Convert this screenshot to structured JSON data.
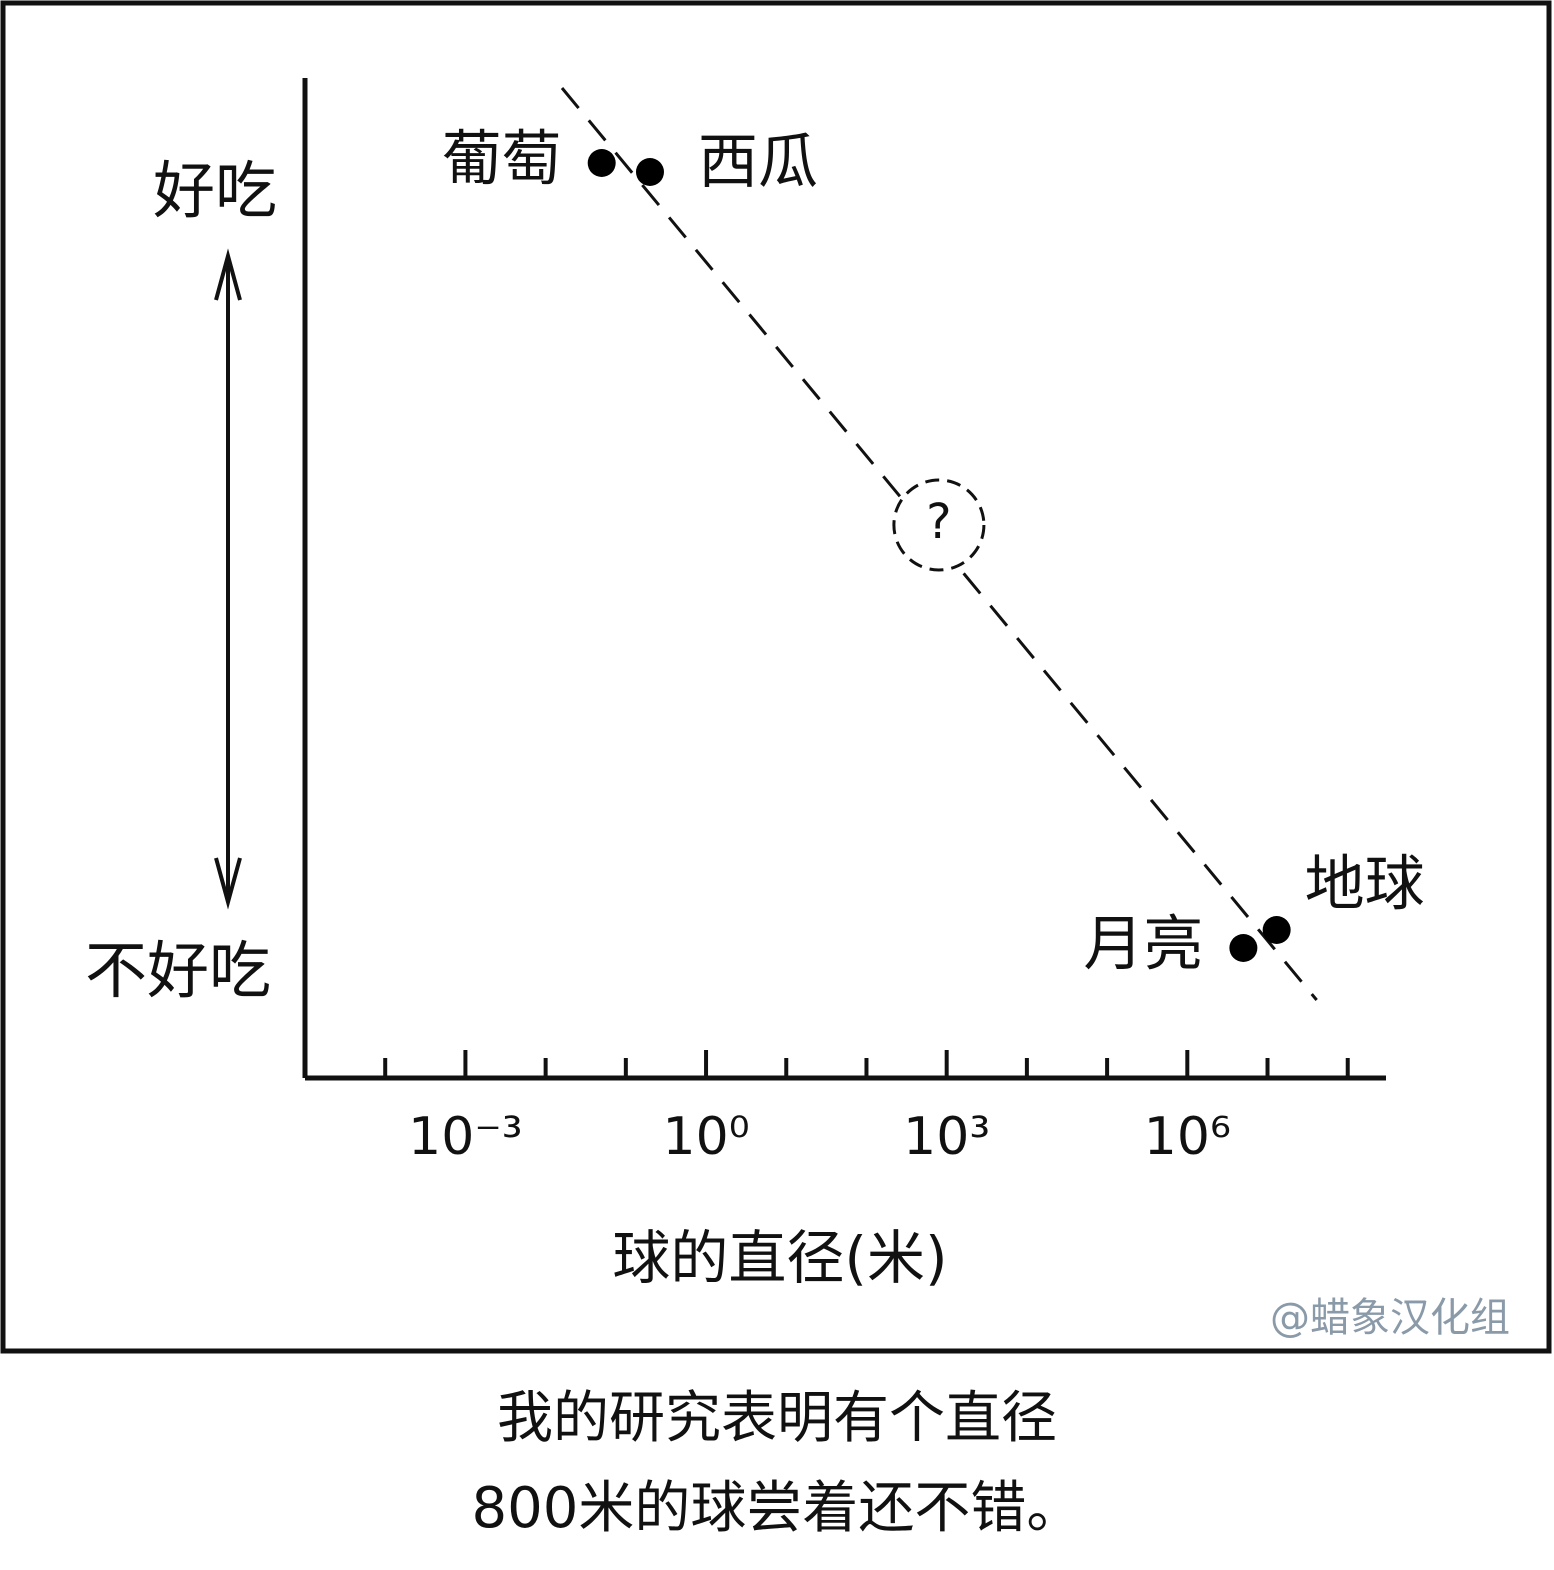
{
  "chart_data": {
    "type": "scatter",
    "x_label": "球的直径(米)",
    "y_top_label": "好吃",
    "y_bottom_label": "不好吃",
    "log_x": true,
    "xlim": [
      1e-05,
      300000000
    ],
    "xticks": [
      {
        "value": 0.001,
        "label": "10⁻³"
      },
      {
        "value": 1,
        "label": "10⁰"
      },
      {
        "value": 1000,
        "label": "10³"
      },
      {
        "value": 1000000,
        "label": "10⁶"
      }
    ],
    "xminorticks": [
      0.0001,
      0.01,
      0.1,
      10,
      100,
      10000,
      100000,
      10000000,
      100000000
    ],
    "ylim": [
      0,
      10
    ],
    "point_labels": [
      "葡萄",
      "西瓜",
      "?",
      "月亮",
      "地球"
    ],
    "x": [
      0.05,
      0.2,
      800,
      5000000,
      13000000
    ],
    "y": [
      9.15,
      9.06,
      5.53,
      1.3,
      1.48
    ],
    "color": "#000000",
    "trend": {
      "x": [
        0.016,
        41000000
      ],
      "y": [
        9.9,
        0.78
      ]
    },
    "caption": [
      "我的研究表明有个直径",
      "800米的球尝着还不错。"
    ],
    "watermark": "@蜡象汉化组"
  }
}
